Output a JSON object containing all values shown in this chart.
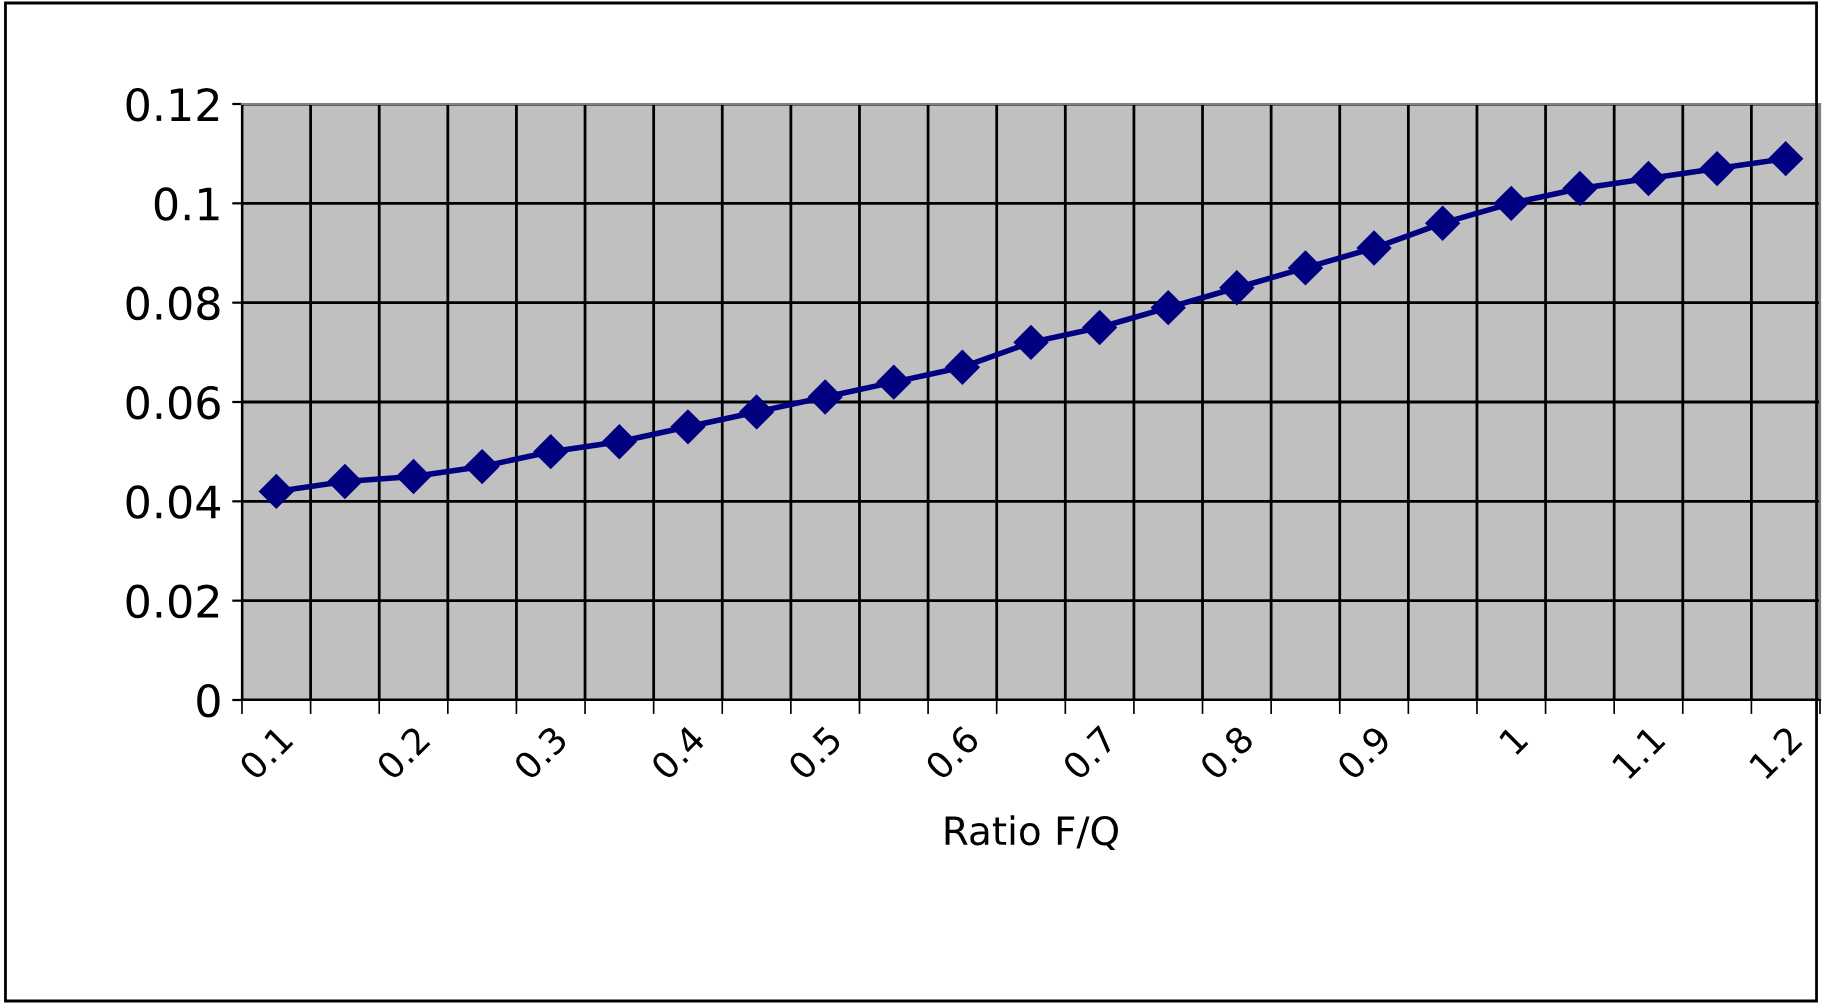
{
  "chart_data": {
    "type": "line",
    "xlabel": "Ratio F/Q",
    "categories": [
      "0.1",
      null,
      "0.2",
      null,
      "0.3",
      null,
      "0.4",
      null,
      "0.5",
      null,
      "0.6",
      null,
      "0.7",
      null,
      "0.8",
      null,
      "0.9",
      null,
      "1",
      null,
      "1.1",
      null,
      "1.2"
    ],
    "series": [
      {
        "color": "#000080",
        "values": [
          0.042,
          0.044,
          0.045,
          0.047,
          0.05,
          0.052,
          0.055,
          0.058,
          0.061,
          0.064,
          0.067,
          0.072,
          0.075,
          0.079,
          0.083,
          0.087,
          0.091,
          0.096,
          0.1,
          0.103,
          0.105,
          0.107,
          0.109
        ]
      }
    ],
    "ylim": [
      0,
      0.12
    ],
    "yticks": [
      0,
      0.02,
      0.04,
      0.06,
      0.08,
      0.1,
      0.12
    ],
    "grid": true,
    "marker": "diamond",
    "line_style": "solid",
    "legend": false
  }
}
